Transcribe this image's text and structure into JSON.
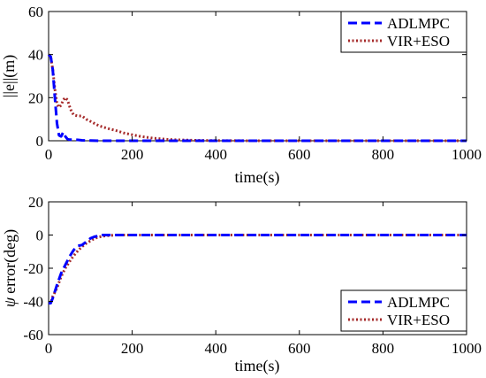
{
  "chart_data": [
    {
      "type": "line",
      "xlabel": "time(s)",
      "ylabel": "||e||(m)",
      "xlim": [
        0,
        1000
      ],
      "ylim": [
        0,
        60
      ],
      "xticks": [
        0,
        200,
        400,
        600,
        800,
        1000
      ],
      "yticks": [
        0,
        20,
        40,
        60
      ],
      "xtick_labels": [
        "0",
        "200",
        "400",
        "600",
        "800",
        "1000"
      ],
      "ytick_labels": [
        "0",
        "20",
        "40",
        "60"
      ],
      "grid": false,
      "legend_position": "top-right",
      "series": [
        {
          "name": "ADLMPC",
          "color": "#0000ff",
          "style": "dashed",
          "x": [
            0,
            5,
            10,
            15,
            20,
            25,
            30,
            35,
            40,
            45,
            50,
            60,
            70,
            80,
            100,
            120,
            150,
            200,
            1000
          ],
          "y": [
            40,
            39,
            33,
            20,
            8,
            2.5,
            2,
            4,
            2,
            0.8,
            0.5,
            0.5,
            0.4,
            0.2,
            0.1,
            0,
            0,
            0,
            0
          ]
        },
        {
          "name": "VIR+ESO",
          "color": "#a52a2a",
          "style": "dotted",
          "x": [
            0,
            5,
            10,
            15,
            20,
            25,
            30,
            35,
            40,
            45,
            50,
            55,
            60,
            70,
            80,
            90,
            100,
            110,
            120,
            140,
            160,
            180,
            200,
            220,
            250,
            280,
            300,
            350,
            400,
            500,
            1000
          ],
          "y": [
            40,
            39,
            33,
            24,
            17,
            15.5,
            16.5,
            19,
            20,
            19,
            16,
            13.5,
            12,
            11.5,
            11.5,
            10,
            9,
            8,
            7,
            5.8,
            4.8,
            3.6,
            2.8,
            2,
            1.2,
            0.7,
            0.5,
            0.2,
            0.1,
            0,
            0
          ]
        }
      ]
    },
    {
      "type": "line",
      "xlabel": "time(s)",
      "ylabel_symbol": "ψ",
      "ylabel": "error(deg)",
      "xlim": [
        0,
        1000
      ],
      "ylim": [
        -60,
        20
      ],
      "xticks": [
        0,
        200,
        400,
        600,
        800,
        1000
      ],
      "yticks": [
        -60,
        -40,
        -20,
        0,
        20
      ],
      "xtick_labels": [
        "0",
        "200",
        "400",
        "600",
        "800",
        "1000"
      ],
      "ytick_labels": [
        "-60",
        "-40",
        "-20",
        "0",
        "20"
      ],
      "grid": false,
      "legend_position": "bottom-right",
      "series": [
        {
          "name": "ADLMPC",
          "color": "#0000ff",
          "style": "dashed",
          "x": [
            0,
            5,
            10,
            20,
            30,
            40,
            50,
            60,
            70,
            80,
            90,
            100,
            110,
            120,
            130,
            140,
            150,
            200,
            1000
          ],
          "y": [
            -41,
            -41,
            -38,
            -30,
            -23,
            -18,
            -13,
            -9,
            -6.5,
            -6,
            -4,
            -2,
            -1,
            -0.5,
            0,
            0,
            0,
            0,
            0
          ]
        },
        {
          "name": "VIR+ESO",
          "color": "#a52a2a",
          "style": "dotted",
          "x": [
            0,
            5,
            10,
            20,
            30,
            40,
            50,
            60,
            70,
            80,
            90,
            100,
            110,
            120,
            130,
            140,
            150,
            160,
            200,
            1000
          ],
          "y": [
            -41,
            -41,
            -37,
            -32,
            -25,
            -20,
            -16,
            -12.5,
            -9.5,
            -7,
            -5,
            -3.5,
            -2,
            -1.2,
            -0.7,
            -0.4,
            -0.2,
            0,
            0,
            0
          ]
        }
      ]
    }
  ]
}
